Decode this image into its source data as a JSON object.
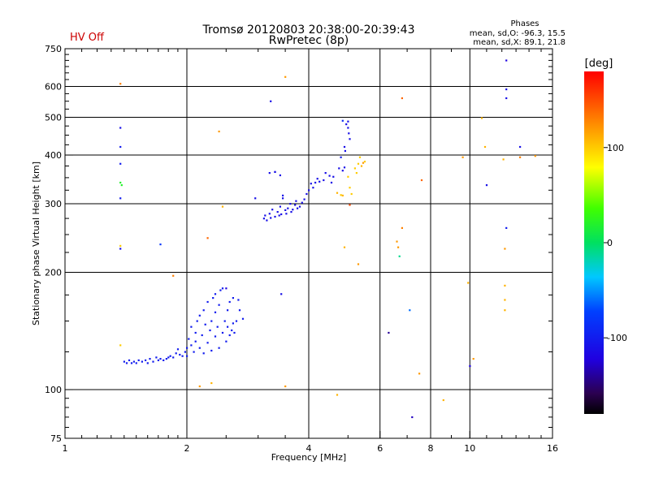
{
  "chart_data": {
    "type": "scatter",
    "title": "Tromsø 20120803 20:38:00-20:39:43",
    "subtitle": "RwPretec (8p)",
    "status_label": "HV Off",
    "stats": {
      "header": "Phases",
      "line1": "mean, sd,O: -96.3, 15.5",
      "line2": "mean, sd,X:  89.1, 21.8"
    },
    "xlabel": "Frequency [MHz]",
    "ylabel": "Stationary phase Virtual Height [km]",
    "x_scale": "log",
    "y_scale": "log",
    "xlim": [
      1,
      16
    ],
    "ylim": [
      75,
      750
    ],
    "x_ticks": [
      1,
      2,
      4,
      6,
      8,
      10,
      16
    ],
    "x_tick_labels": [
      "1",
      "2",
      "4",
      "6",
      "8",
      "10",
      "16"
    ],
    "y_ticks": [
      75,
      100,
      200,
      300,
      400,
      500,
      600,
      750
    ],
    "y_tick_labels": [
      "75",
      "100",
      "200",
      "300",
      "400",
      "500",
      "600",
      "750"
    ],
    "grid": true,
    "colorbar": {
      "label": "[deg]",
      "range": [
        -180,
        180
      ],
      "ticks": [
        100,
        0,
        -100
      ],
      "tick_labels": [
        "100",
        "0",
        "-100"
      ]
    },
    "series": [
      {
        "points": [
          [
            1.4,
            118,
            -100
          ],
          [
            1.42,
            117,
            -100
          ],
          [
            1.44,
            119,
            -100
          ],
          [
            1.46,
            117,
            -100
          ],
          [
            1.48,
            118,
            -100
          ],
          [
            1.5,
            117,
            -100
          ],
          [
            1.52,
            119,
            -100
          ],
          [
            1.55,
            118,
            -100
          ],
          [
            1.58,
            119,
            -100
          ],
          [
            1.6,
            117,
            -100
          ],
          [
            1.62,
            120,
            -100
          ],
          [
            1.65,
            118,
            -100
          ],
          [
            1.68,
            121,
            -100
          ],
          [
            1.7,
            119,
            -100
          ],
          [
            1.72,
            120,
            -100
          ],
          [
            1.75,
            119,
            -100
          ],
          [
            1.78,
            120,
            -100
          ],
          [
            1.8,
            121,
            -100
          ],
          [
            1.82,
            122,
            -100
          ],
          [
            1.85,
            121,
            -100
          ],
          [
            1.88,
            124,
            -100
          ],
          [
            1.9,
            127,
            -100
          ],
          [
            1.92,
            123,
            -100
          ],
          [
            1.95,
            122,
            -100
          ],
          [
            1.98,
            125,
            -100
          ],
          [
            2.0,
            128,
            -100
          ],
          [
            2.0,
            122,
            -100
          ],
          [
            2.02,
            135,
            -100
          ],
          [
            2.05,
            130,
            -100
          ],
          [
            2.05,
            145,
            -100
          ],
          [
            2.08,
            125,
            -100
          ],
          [
            2.1,
            140,
            -100
          ],
          [
            2.1,
            133,
            -100
          ],
          [
            2.12,
            150,
            -100
          ],
          [
            2.15,
            128,
            -100
          ],
          [
            2.15,
            155,
            -100
          ],
          [
            2.18,
            138,
            -100
          ],
          [
            2.2,
            160,
            -100
          ],
          [
            2.2,
            124,
            -100
          ],
          [
            2.22,
            147,
            -100
          ],
          [
            2.25,
            168,
            -100
          ],
          [
            2.25,
            132,
            -100
          ],
          [
            2.28,
            142,
            -100
          ],
          [
            2.3,
            150,
            -100
          ],
          [
            2.3,
            126,
            -100
          ],
          [
            2.32,
            172,
            -100
          ],
          [
            2.35,
            137,
            -100
          ],
          [
            2.35,
            158,
            -100
          ],
          [
            2.38,
            145,
            -100
          ],
          [
            2.4,
            165,
            -100
          ],
          [
            2.4,
            128,
            -100
          ],
          [
            2.42,
            180,
            -100
          ],
          [
            2.45,
            140,
            -100
          ],
          [
            2.48,
            150,
            -100
          ],
          [
            2.5,
            133,
            -100
          ],
          [
            2.5,
            182,
            -120
          ],
          [
            2.52,
            145,
            -100
          ],
          [
            2.55,
            138,
            -100
          ],
          [
            2.58,
            142,
            -100
          ],
          [
            2.6,
            148,
            -100
          ],
          [
            2.62,
            140,
            -100
          ],
          [
            2.65,
            150,
            -100
          ],
          [
            2.68,
            170,
            -100
          ],
          [
            2.7,
            160,
            -100
          ],
          [
            2.75,
            152,
            -100
          ],
          [
            2.55,
            168,
            -100
          ],
          [
            2.6,
            172,
            -100
          ],
          [
            2.35,
            176,
            -100
          ],
          [
            2.45,
            182,
            -100
          ],
          [
            2.52,
            160,
            -100
          ],
          [
            2.95,
            310,
            -110
          ],
          [
            3.1,
            275,
            -110
          ],
          [
            3.12,
            280,
            -110
          ],
          [
            3.15,
            272,
            -110
          ],
          [
            3.2,
            283,
            -110
          ],
          [
            3.22,
            276,
            -110
          ],
          [
            3.25,
            290,
            -110
          ],
          [
            3.3,
            278,
            -110
          ],
          [
            3.35,
            286,
            -110
          ],
          [
            3.38,
            280,
            -110
          ],
          [
            3.4,
            295,
            -110
          ],
          [
            3.42,
            282,
            -110
          ],
          [
            3.45,
            310,
            -110
          ],
          [
            3.5,
            289,
            -110
          ],
          [
            3.52,
            283,
            -110
          ],
          [
            3.55,
            292,
            -110
          ],
          [
            3.6,
            300,
            -110
          ],
          [
            3.62,
            286,
            -110
          ],
          [
            3.65,
            290,
            -110
          ],
          [
            3.7,
            298,
            -110
          ],
          [
            3.72,
            305,
            -110
          ],
          [
            3.75,
            292,
            -110
          ],
          [
            3.8,
            295,
            -110
          ],
          [
            3.85,
            302,
            -110
          ],
          [
            3.9,
            308,
            -110
          ],
          [
            3.95,
            318,
            -110
          ],
          [
            4.0,
            325,
            -110
          ],
          [
            4.05,
            338,
            -110
          ],
          [
            4.1,
            330,
            -110
          ],
          [
            4.15,
            340,
            -110
          ],
          [
            4.2,
            348,
            -110
          ],
          [
            4.25,
            342,
            -110
          ],
          [
            4.35,
            345,
            -110
          ],
          [
            4.4,
            360,
            -110
          ],
          [
            4.5,
            354,
            -110
          ],
          [
            4.55,
            340,
            -110
          ],
          [
            4.6,
            352,
            -110
          ],
          [
            4.75,
            370,
            -110
          ],
          [
            4.8,
            395,
            -100
          ],
          [
            4.85,
            365,
            -110
          ],
          [
            4.9,
            372,
            -110
          ],
          [
            3.45,
            315,
            -110
          ],
          [
            3.3,
            362,
            -110
          ],
          [
            3.4,
            355,
            -110
          ],
          [
            3.22,
            550,
            -110
          ],
          [
            3.2,
            360,
            -110
          ],
          [
            4.85,
            490,
            -90
          ],
          [
            4.95,
            480,
            -110
          ],
          [
            5.0,
            470,
            -110
          ],
          [
            5.02,
            455,
            -110
          ],
          [
            5.05,
            440,
            -110
          ],
          [
            4.9,
            420,
            -110
          ],
          [
            4.92,
            410,
            -110
          ],
          [
            5.0,
            488,
            -110
          ],
          [
            1.37,
            470,
            -110
          ],
          [
            1.37,
            420,
            -100
          ],
          [
            1.37,
            380,
            -100
          ],
          [
            1.37,
            310,
            -100
          ],
          [
            1.37,
            230,
            -110
          ],
          [
            1.37,
            340,
            20
          ],
          [
            1.38,
            335,
            20
          ],
          [
            1.72,
            236,
            -80
          ],
          [
            7.2,
            85,
            -130
          ],
          [
            6.3,
            140,
            -140
          ],
          [
            7.1,
            160,
            -60
          ],
          [
            10.0,
            115,
            -120
          ],
          [
            11.0,
            335,
            -110
          ],
          [
            12.3,
            700,
            -120
          ],
          [
            12.3,
            590,
            -110
          ],
          [
            12.3,
            560,
            -110
          ],
          [
            12.3,
            260,
            -100
          ],
          [
            13.3,
            420,
            -110
          ],
          [
            3.42,
            176,
            -110
          ],
          [
            3.3,
            362,
            -110
          ],
          [
            6.7,
            220,
            -10
          ],
          [
            1.37,
            130,
            100
          ],
          [
            1.37,
            610,
            130
          ],
          [
            1.37,
            234,
            100
          ],
          [
            1.85,
            196,
            130
          ],
          [
            2.15,
            102,
            120
          ],
          [
            2.3,
            104,
            110
          ],
          [
            2.4,
            460,
            120
          ],
          [
            2.45,
            295,
            110
          ],
          [
            2.25,
            245,
            140
          ],
          [
            3.5,
            635,
            120
          ],
          [
            3.5,
            102,
            120
          ],
          [
            4.7,
            97,
            110
          ],
          [
            4.9,
            232,
            110
          ],
          [
            5.05,
            298,
            150
          ],
          [
            5.3,
            210,
            120
          ],
          [
            4.7,
            320,
            110
          ],
          [
            4.8,
            316,
            100
          ],
          [
            4.85,
            315,
            110
          ],
          [
            5.0,
            352,
            100
          ],
          [
            5.05,
            330,
            100
          ],
          [
            5.1,
            318,
            100
          ],
          [
            5.2,
            370,
            100
          ],
          [
            5.25,
            360,
            100
          ],
          [
            5.3,
            380,
            100
          ],
          [
            5.4,
            375,
            110
          ],
          [
            5.45,
            382,
            120
          ],
          [
            5.35,
            395,
            100
          ],
          [
            5.5,
            385,
            100
          ],
          [
            6.6,
            240,
            120
          ],
          [
            6.65,
            232,
            120
          ],
          [
            6.8,
            260,
            130
          ],
          [
            6.8,
            560,
            140
          ],
          [
            7.5,
            110,
            120
          ],
          [
            7.6,
            345,
            140
          ],
          [
            8.6,
            94,
            110
          ],
          [
            9.6,
            395,
            120
          ],
          [
            9.9,
            188,
            110
          ],
          [
            10.2,
            120,
            120
          ],
          [
            10.7,
            498,
            110
          ],
          [
            10.9,
            420,
            110
          ],
          [
            12.1,
            390,
            110
          ],
          [
            12.2,
            230,
            120
          ],
          [
            12.2,
            185,
            110
          ],
          [
            12.2,
            170,
            110
          ],
          [
            12.2,
            160,
            110
          ],
          [
            13.3,
            395,
            130
          ],
          [
            14.5,
            398,
            120
          ]
        ]
      }
    ]
  }
}
